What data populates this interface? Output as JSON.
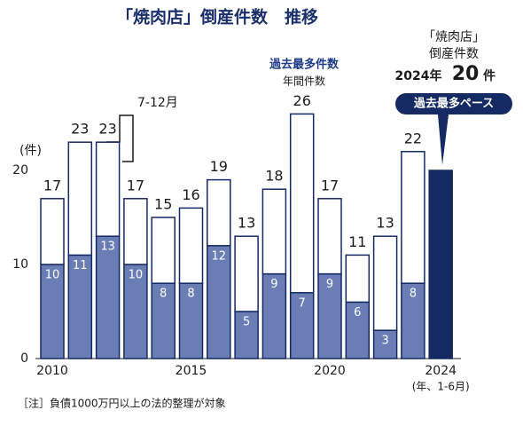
{
  "chart_data": {
    "type": "bar",
    "stacked": true,
    "title": "「焼肉店」倒産件数　推移",
    "y_unit": "(件)",
    "categories": [
      "2010",
      null,
      null,
      null,
      null,
      "2015",
      null,
      null,
      null,
      null,
      "2020",
      null,
      null,
      null,
      "2024"
    ],
    "x_note": "(年、1-6月)",
    "series": [
      {
        "color": "#6a7db5",
        "values": [
          10,
          11,
          13,
          10,
          8,
          8,
          12,
          5,
          9,
          7,
          9,
          6,
          3,
          8,
          null
        ]
      },
      {
        "color": "#ffffff",
        "values": [
          7,
          12,
          10,
          7,
          7,
          8,
          7,
          8,
          9,
          19,
          8,
          5,
          10,
          14,
          null
        ]
      },
      {
        "color": "#152a63",
        "values": [
          null,
          null,
          null,
          null,
          null,
          null,
          null,
          null,
          null,
          null,
          null,
          null,
          null,
          null,
          20
        ]
      }
    ],
    "totals": [
      17,
      23,
      23,
      17,
      15,
      16,
      19,
      13,
      18,
      26,
      17,
      11,
      13,
      22,
      null
    ],
    "ylim": [
      0,
      26
    ],
    "yticks": [
      0,
      10,
      20
    ],
    "annotations": {
      "half": "7-12月",
      "record": "過去最多件数",
      "annual": "年間件数",
      "badge_title": "「焼肉店」",
      "badge_sub": "倒産件数",
      "badge_year": "2024年",
      "badge_count": 20,
      "badge_unit": "件",
      "pace": "過去最多ペース"
    },
    "footnote": "［注］負債1000万円以上の法的整理が対象"
  }
}
